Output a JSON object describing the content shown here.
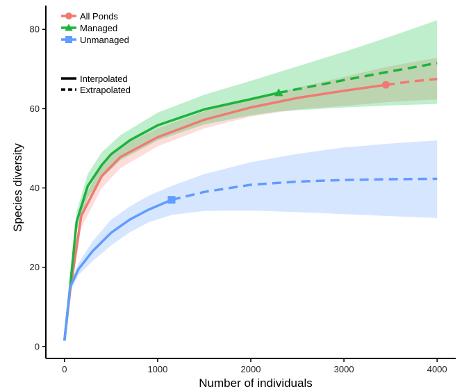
{
  "chart_data": {
    "type": "line",
    "xlabel": "Number of individuals",
    "ylabel": "Species diversity",
    "xlim": [
      -200,
      4200
    ],
    "ylim": [
      -3,
      86
    ],
    "x_ticks": [
      0,
      1000,
      2000,
      3000,
      4000
    ],
    "y_ticks": [
      0,
      20,
      40,
      60,
      80
    ],
    "grid": false,
    "legend": {
      "placement": "top-left",
      "entries": [
        {
          "name": "All Ponds",
          "color": "#F07A72",
          "marker": "circle"
        },
        {
          "name": "Managed",
          "color": "#1DB33C",
          "marker": "triangle"
        },
        {
          "name": "Unmanaged",
          "color": "#619CFF",
          "marker": "square"
        }
      ],
      "linetypes": [
        {
          "name": "Interpolated",
          "style": "solid"
        },
        {
          "name": "Extrapolated",
          "style": "dashed"
        }
      ]
    },
    "series": [
      {
        "name": "All Ponds",
        "color": "#F07A72",
        "band_color": "#F8766D",
        "marker": "circle",
        "observed": {
          "x": 3450,
          "y": 66
        },
        "interpolated": [
          [
            0,
            1.5
          ],
          [
            60,
            14
          ],
          [
            180,
            33
          ],
          [
            400,
            43
          ],
          [
            600,
            47.8
          ],
          [
            1000,
            52.8
          ],
          [
            1500,
            57.2
          ],
          [
            2000,
            60.3
          ],
          [
            2500,
            62.7
          ],
          [
            3000,
            64.5
          ],
          [
            3450,
            66
          ]
        ],
        "extrapolated": [
          [
            3450,
            66
          ],
          [
            3700,
            66.8
          ],
          [
            4000,
            67.5
          ]
        ],
        "lower": [
          [
            0,
            1.5
          ],
          [
            60,
            13
          ],
          [
            180,
            30
          ],
          [
            400,
            40
          ],
          [
            600,
            45
          ],
          [
            1000,
            50.5
          ],
          [
            1500,
            55
          ],
          [
            2000,
            58
          ],
          [
            2500,
            59.8
          ],
          [
            3000,
            60.7
          ],
          [
            3450,
            61.6
          ],
          [
            3700,
            62
          ],
          [
            4000,
            62.3
          ]
        ],
        "upper": [
          [
            0,
            1.5
          ],
          [
            60,
            15
          ],
          [
            180,
            36
          ],
          [
            400,
            46
          ],
          [
            600,
            50.5
          ],
          [
            1000,
            55
          ],
          [
            1500,
            59.3
          ],
          [
            2000,
            62.5
          ],
          [
            2500,
            65.3
          ],
          [
            3000,
            68
          ],
          [
            3450,
            70.5
          ],
          [
            3700,
            71.6
          ],
          [
            4000,
            72.8
          ]
        ]
      },
      {
        "name": "Managed",
        "color": "#1DB33C",
        "band_color": "#00BA38",
        "marker": "triangle",
        "observed": {
          "x": 2300,
          "y": 64
        },
        "interpolated": [
          [
            0,
            1.5
          ],
          [
            60,
            15
          ],
          [
            130,
            31.5
          ],
          [
            250,
            40.5
          ],
          [
            400,
            45.8
          ],
          [
            500,
            48.5
          ],
          [
            700,
            52
          ],
          [
            1000,
            55.8
          ],
          [
            1500,
            59.8
          ],
          [
            2000,
            62.4
          ],
          [
            2300,
            64
          ]
        ],
        "extrapolated": [
          [
            2300,
            64
          ],
          [
            3000,
            67.2
          ],
          [
            3500,
            69.4
          ],
          [
            4000,
            71.5
          ]
        ],
        "lower": [
          [
            0,
            1.5
          ],
          [
            60,
            14
          ],
          [
            130,
            29
          ],
          [
            250,
            37.5
          ],
          [
            400,
            42.5
          ],
          [
            600,
            47
          ],
          [
            1000,
            52
          ],
          [
            1500,
            56
          ],
          [
            2000,
            58.3
          ],
          [
            2300,
            59.3
          ],
          [
            3000,
            60.3
          ],
          [
            3500,
            60.8
          ],
          [
            4000,
            61.2
          ]
        ],
        "upper": [
          [
            0,
            1.5
          ],
          [
            60,
            16
          ],
          [
            130,
            34
          ],
          [
            250,
            43.5
          ],
          [
            400,
            49
          ],
          [
            600,
            53.3
          ],
          [
            1000,
            59
          ],
          [
            1500,
            63.5
          ],
          [
            2000,
            67
          ],
          [
            2300,
            69.2
          ],
          [
            3000,
            74.3
          ],
          [
            3500,
            78.2
          ],
          [
            4000,
            82.3
          ]
        ]
      },
      {
        "name": "Unmanaged",
        "color": "#619CFF",
        "band_color": "#619CFF",
        "marker": "square",
        "observed": {
          "x": 1150,
          "y": 37
        },
        "interpolated": [
          [
            0,
            1.5
          ],
          [
            60,
            15
          ],
          [
            150,
            19.5
          ],
          [
            300,
            24
          ],
          [
            500,
            28.7
          ],
          [
            700,
            32
          ],
          [
            900,
            34.5
          ],
          [
            1150,
            37
          ]
        ],
        "extrapolated": [
          [
            1150,
            37
          ],
          [
            1500,
            39
          ],
          [
            2000,
            40.8
          ],
          [
            2500,
            41.6
          ],
          [
            3000,
            42
          ],
          [
            3500,
            42.2
          ],
          [
            4000,
            42.3
          ]
        ],
        "lower": [
          [
            0,
            1.5
          ],
          [
            60,
            14
          ],
          [
            150,
            18
          ],
          [
            300,
            21.5
          ],
          [
            500,
            25.5
          ],
          [
            700,
            28.8
          ],
          [
            900,
            31.3
          ],
          [
            1150,
            33.2
          ],
          [
            1500,
            34.2
          ],
          [
            2000,
            34.3
          ],
          [
            2500,
            33.9
          ],
          [
            3000,
            33.4
          ],
          [
            3500,
            32.9
          ],
          [
            4000,
            32.4
          ]
        ],
        "upper": [
          [
            0,
            1.5
          ],
          [
            60,
            16
          ],
          [
            150,
            21
          ],
          [
            300,
            26.5
          ],
          [
            500,
            32
          ],
          [
            700,
            35.3
          ],
          [
            900,
            38
          ],
          [
            1150,
            40.5
          ],
          [
            1500,
            43.5
          ],
          [
            2000,
            46.5
          ],
          [
            2500,
            48.6
          ],
          [
            3000,
            50.2
          ],
          [
            3500,
            51.2
          ],
          [
            4000,
            52
          ]
        ]
      }
    ]
  }
}
